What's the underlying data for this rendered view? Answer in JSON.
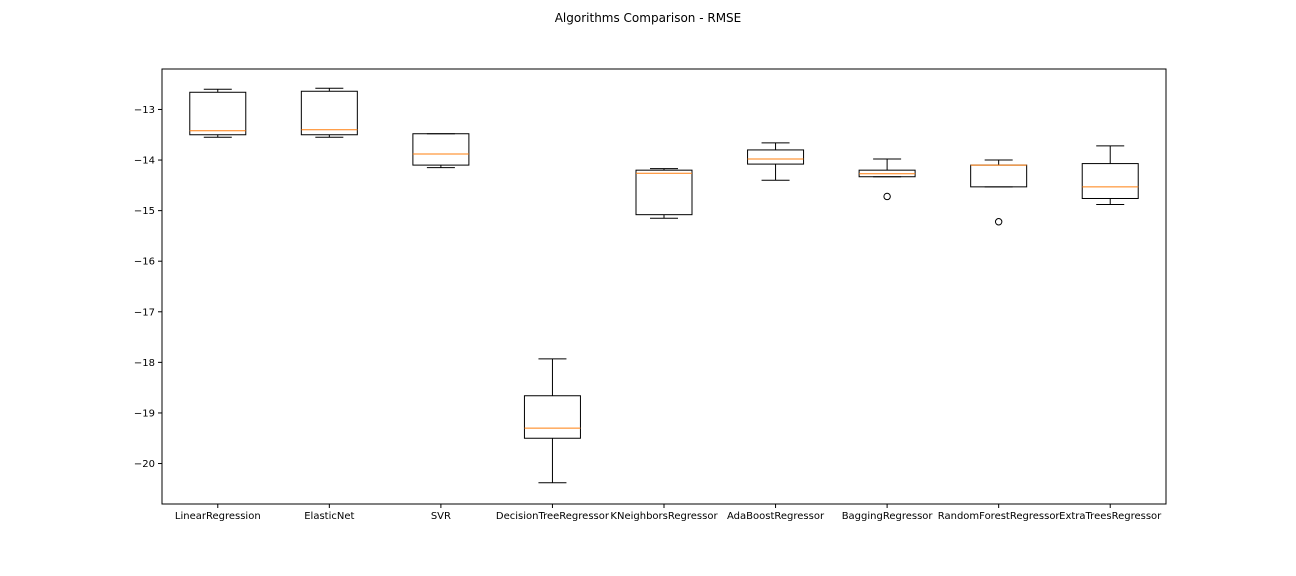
{
  "chart_data": {
    "type": "box",
    "title": "Algorithms Comparison - RMSE",
    "xlabel": "",
    "ylabel": "",
    "ylim": [
      -20.8,
      -12.2
    ],
    "yticks": [
      -13,
      -14,
      -15,
      -16,
      -17,
      -18,
      -19,
      -20
    ],
    "ytick_labels": [
      "−13",
      "−14",
      "−15",
      "−16",
      "−17",
      "−18",
      "−19",
      "−20"
    ],
    "grid": false,
    "categories": [
      "LinearRegression",
      "ElasticNet",
      "SVR",
      "DecisionTreeRegressor",
      "KNeighborsRegressor",
      "AdaBoostRegressor",
      "BaggingRegressor",
      "RandomForestRegressor",
      "ExtraTreesRegressor"
    ],
    "boxes": [
      {
        "whisker_low": -13.55,
        "q1": -13.5,
        "median": -13.42,
        "q3": -12.66,
        "whisker_high": -12.6,
        "outliers": []
      },
      {
        "whisker_low": -13.55,
        "q1": -13.5,
        "median": -13.4,
        "q3": -12.64,
        "whisker_high": -12.58,
        "outliers": []
      },
      {
        "whisker_low": -14.15,
        "q1": -14.1,
        "median": -13.88,
        "q3": -13.48,
        "whisker_high": -13.48,
        "outliers": []
      },
      {
        "whisker_low": -20.38,
        "q1": -19.5,
        "median": -19.3,
        "q3": -18.66,
        "whisker_high": -17.93,
        "outliers": []
      },
      {
        "whisker_low": -15.15,
        "q1": -15.08,
        "median": -14.26,
        "q3": -14.2,
        "whisker_high": -14.17,
        "outliers": []
      },
      {
        "whisker_low": -14.4,
        "q1": -14.08,
        "median": -13.98,
        "q3": -13.8,
        "whisker_high": -13.66,
        "outliers": []
      },
      {
        "whisker_low": -14.33,
        "q1": -14.33,
        "median": -14.27,
        "q3": -14.2,
        "whisker_high": -13.98,
        "outliers": [
          -14.72
        ]
      },
      {
        "whisker_low": -14.53,
        "q1": -14.53,
        "median": -14.1,
        "q3": -14.1,
        "whisker_high": -14.0,
        "outliers": [
          -15.22
        ]
      },
      {
        "whisker_low": -14.88,
        "q1": -14.76,
        "median": -14.53,
        "q3": -14.07,
        "whisker_high": -13.72,
        "outliers": []
      }
    ],
    "colors": {
      "box": "#000000",
      "median": "#ff7f0e",
      "axes": "#000000",
      "background": "#ffffff"
    }
  }
}
